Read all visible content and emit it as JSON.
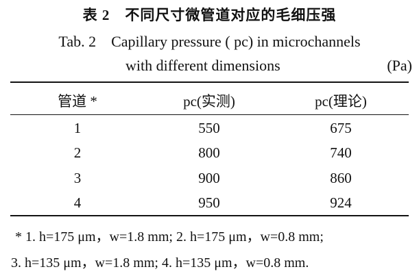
{
  "caption": {
    "title_cn": "表 2　不同尺寸微管道对应的毛细压强",
    "title_en_line1": "Tab. 2　Capillary pressure ( pc) in microchannels",
    "title_en_line2": "with different dimensions",
    "unit": "(Pa)"
  },
  "table": {
    "headers": [
      "管道 *",
      "pc(实测)",
      "pc(理论)"
    ],
    "rows": [
      [
        "1",
        "550",
        "675"
      ],
      [
        "2",
        "800",
        "740"
      ],
      [
        "3",
        "900",
        "860"
      ],
      [
        "4",
        "950",
        "924"
      ]
    ]
  },
  "footnote": {
    "line1": "* 1.  h=175 μm，w=1.8 mm; 2.  h=175 μm，w=0.8 mm;",
    "line2": "3.  h=135 μm，w=1.8 mm; 4.  h=135 μm，w=0.8 mm."
  }
}
